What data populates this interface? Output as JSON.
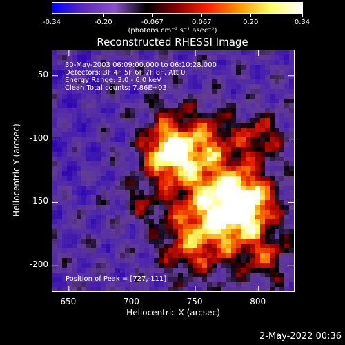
{
  "colorbar": {
    "ticks": [
      "-0.34",
      "-0.20",
      "-0.067",
      "0.067",
      "0.20",
      "0.34"
    ],
    "tick_values": [
      -0.34,
      -0.2,
      -0.067,
      0.067,
      0.2,
      0.34
    ],
    "units": "(photons cm⁻² s⁻¹ asec⁻²)",
    "colors": [
      "#0000ff",
      "#5b2bbf",
      "#8a50c9",
      "#000000",
      "#8b0000",
      "#ff2200",
      "#ff9900",
      "#ffff66",
      "#ffffff"
    ]
  },
  "plot": {
    "title": "Reconstructed RHESSI Image",
    "info_lines": [
      "30-May-2003 06:09:00.000 to 06:10:28.000",
      "Detectors: 3F 4F 5F 6F 7F 8F, Att 0",
      "Energy Range: 3.0 - 6.0 keV",
      "Clean     Total counts: 7.86E+03"
    ],
    "peak_text": "Position of Peak = [727,-111]",
    "x_label": "Heliocentric X (arcsec)",
    "y_label": "Heliocentric Y (arcsec)",
    "x_ticks": [
      "650",
      "700",
      "750",
      "800"
    ],
    "x_tick_values": [
      650,
      700,
      750,
      800
    ],
    "x_range": [
      637,
      828
    ],
    "y_ticks": [
      "-50",
      "-100",
      "-150",
      "-200"
    ],
    "y_tick_values": [
      -50,
      -100,
      -150,
      -200
    ],
    "y_range": [
      -220,
      -30
    ]
  },
  "footer": {
    "timestamp": "2-May-2022 00:36"
  }
}
